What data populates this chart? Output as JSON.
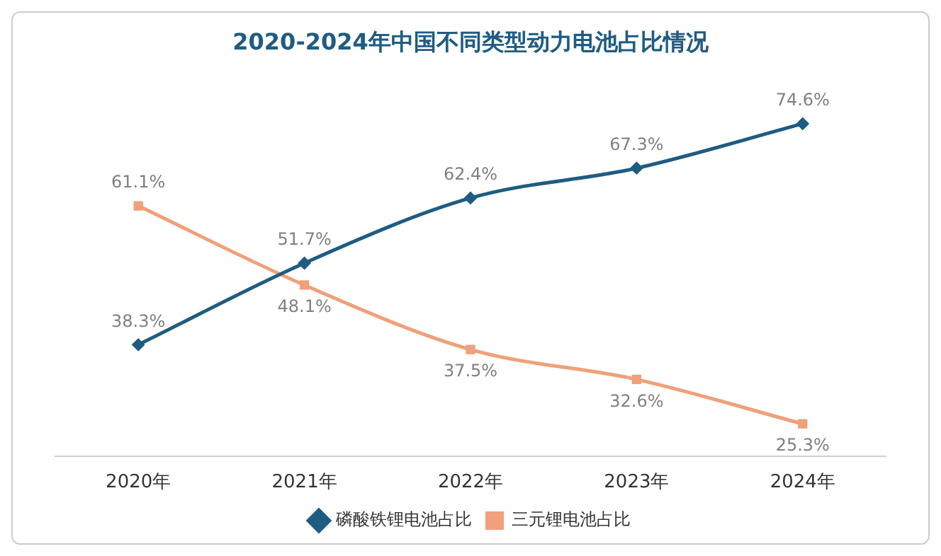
{
  "chart_data": {
    "type": "line",
    "title": "2020-2024年中国不同类型动力电池占比情况",
    "categories": [
      "2020年",
      "2021年",
      "2022年",
      "2023年",
      "2024年"
    ],
    "series": [
      {
        "name": "磷酸铁锂电池占比",
        "color": "#1f5c82",
        "marker": "diamond",
        "values": [
          38.3,
          51.7,
          62.4,
          67.3,
          74.6
        ],
        "value_labels": [
          "38.3%",
          "51.7%",
          "62.4%",
          "67.3%",
          "74.6%"
        ]
      },
      {
        "name": "三元锂电池占比",
        "color": "#f0a07a",
        "marker": "square",
        "values": [
          61.1,
          48.1,
          37.5,
          32.6,
          25.3
        ],
        "value_labels": [
          "61.1%",
          "48.1%",
          "37.5%",
          "32.6%",
          "25.3%"
        ]
      }
    ],
    "tick_labels": "x",
    "grid": false,
    "legend": "bottom"
  }
}
